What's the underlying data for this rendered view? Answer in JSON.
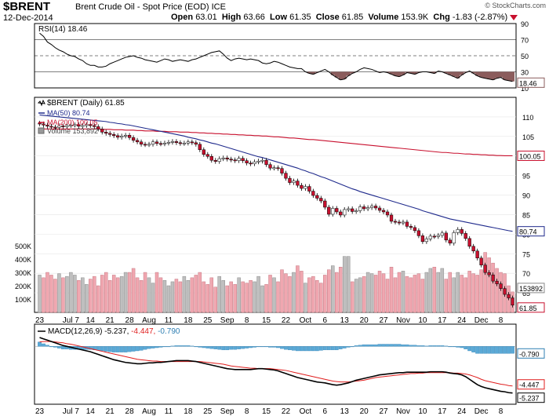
{
  "header": {
    "symbol": "$BRENT",
    "name": "Brent Crude Oil - Spot Price (EOD)",
    "exchange": "ICE",
    "date": "12-Dec-2014",
    "open_label": "Open",
    "open": "63.01",
    "high_label": "High",
    "high": "63.66",
    "low_label": "Low",
    "low": "61.35",
    "close_label": "Close",
    "close": "61.85",
    "volume_label": "Volume",
    "volume": "153.9K",
    "chg_label": "Chg",
    "chg": "-1.83 (-2.87%)",
    "watermark": "© StockCharts.com"
  },
  "colors": {
    "up": "#ffffff",
    "down": "#c8102e",
    "ma50": "#1f2a8c",
    "ma200": "#c8102e",
    "vol_up": "#bfbfbf",
    "vol_down": "#f0a7b0",
    "macd": "#000000",
    "signal": "#e01e1e",
    "hist": "#5aa9d6",
    "rsi_fill": "#8b5c5c"
  },
  "chart_data": [
    {
      "type": "line",
      "panel": "rsi",
      "legend": "RSI(14) 18.46",
      "last_value": "18.46",
      "ylim": [
        10,
        90
      ],
      "y_ticks": [
        90,
        70,
        50,
        30,
        10
      ],
      "y_tick_labels": [
        "90",
        "70",
        "50",
        "30",
        "10"
      ],
      "series": [
        {
          "name": "RSI(14)",
          "values": [
            78,
            74,
            67,
            64,
            60,
            57,
            55,
            52,
            50,
            49,
            46,
            44,
            40,
            38,
            38,
            36,
            36,
            37,
            40,
            42,
            44,
            46,
            48,
            49,
            50,
            48,
            47,
            45,
            44,
            43,
            42,
            44,
            46,
            45,
            43,
            44,
            45,
            44,
            43,
            45,
            46,
            48,
            50,
            52,
            54,
            55,
            56,
            52,
            47,
            44,
            46,
            47,
            46,
            45,
            46,
            45,
            44,
            41,
            40,
            41,
            43,
            42,
            40,
            38,
            36,
            35,
            34,
            34,
            30,
            28,
            27,
            29,
            31,
            33,
            30,
            26,
            23,
            20,
            21,
            25,
            28,
            30,
            33,
            35,
            34,
            33,
            31,
            29,
            30,
            29,
            27,
            25,
            24,
            26,
            29,
            28,
            27,
            29,
            30,
            30,
            29,
            28,
            31,
            30,
            28,
            26,
            24,
            22,
            26,
            29,
            31,
            28,
            25,
            23,
            22,
            21,
            20,
            22,
            23,
            20,
            19,
            18
          ]
        }
      ]
    },
    {
      "type": "candlestick",
      "panel": "price",
      "legend_title": "$BRENT (Daily) 61.85",
      "ylim": [
        60,
        115
      ],
      "y_ticks": [
        110,
        105,
        100,
        95,
        90,
        85,
        80,
        75,
        70,
        65
      ],
      "y_tick_labels": [
        "110",
        "105",
        "100",
        "95",
        "90",
        "85",
        "80",
        "75",
        "70",
        "65"
      ],
      "last_labels": {
        "ma200": "100.05",
        "ma50": "80.74",
        "close": "61.85",
        "volume": "153892"
      },
      "closes": [
        108.2,
        107.9,
        107.6,
        107.4,
        107.3,
        107.7,
        107.5,
        107.8,
        107.9,
        108.0,
        107.6,
        107.8,
        108.0,
        107.8,
        107.5,
        106.9,
        106.1,
        105.8,
        105.5,
        105.2,
        104.8,
        105.1,
        105.3,
        104.7,
        104.0,
        103.6,
        103.0,
        102.9,
        103.0,
        103.6,
        103.2,
        103.1,
        103.3,
        103.5,
        103.7,
        103.4,
        103.2,
        103.3,
        103.6,
        103.4,
        103.0,
        101.6,
        100.4,
        99.9,
        98.9,
        98.6,
        99.3,
        99.5,
        99.2,
        99.0,
        98.8,
        99.4,
        98.8,
        98.2,
        98.0,
        98.5,
        98.7,
        98.9,
        97.8,
        96.9,
        97.0,
        96.8,
        95.6,
        94.3,
        93.2,
        93.6,
        92.5,
        91.7,
        92.2,
        91.0,
        89.9,
        89.2,
        88.5,
        86.9,
        85.1,
        86.6,
        85.7,
        84.9,
        86.3,
        86.5,
        85.8,
        86.0,
        87.0,
        86.5,
        86.8,
        87.2,
        86.7,
        86.1,
        85.7,
        84.9,
        83.3,
        83.1,
        82.9,
        83.1,
        82.0,
        81.7,
        80.9,
        79.6,
        78.1,
        78.8,
        79.5,
        79.4,
        79.7,
        80.3,
        78.5,
        77.7,
        80.4,
        81.2,
        80.2,
        78.9,
        76.9,
        75.7,
        73.9,
        72.1,
        70.2,
        69.6,
        68.0,
        67.3,
        66.1,
        64.6,
        63.7,
        61.85
      ],
      "ma50": [
        110.5,
        110.4,
        110.3,
        110.2,
        110.1,
        110.0,
        109.9,
        109.8,
        109.7,
        109.6,
        109.5,
        109.4,
        109.3,
        109.2,
        109.1,
        109.0,
        108.9,
        108.8,
        108.6,
        108.5,
        108.3,
        108.2,
        108.0,
        107.9,
        107.7,
        107.5,
        107.3,
        107.1,
        106.9,
        106.7,
        106.5,
        106.3,
        106.1,
        105.9,
        105.7,
        105.5,
        105.3,
        105.1,
        104.8,
        104.6,
        104.4,
        104.1,
        103.9,
        103.6,
        103.3,
        103.1,
        102.8,
        102.5,
        102.2,
        101.9,
        101.6,
        101.3,
        101.0,
        100.7,
        100.4,
        100.1,
        99.8,
        99.6,
        99.3,
        99.0,
        98.7,
        98.4,
        98.1,
        97.8,
        97.5,
        97.2,
        96.9,
        96.5,
        96.2,
        95.8,
        95.5,
        95.1,
        94.7,
        94.4,
        94.0,
        93.6,
        93.2,
        92.8,
        92.4,
        92.0,
        91.6,
        91.3,
        90.9,
        90.6,
        90.3,
        90.0,
        89.7,
        89.4,
        89.1,
        88.8,
        88.5,
        88.2,
        87.9,
        87.6,
        87.3,
        87.0,
        86.7,
        86.4,
        86.0,
        85.7,
        85.4,
        85.1,
        84.8,
        84.5,
        84.2,
        83.9,
        83.7,
        83.5,
        83.3,
        83.1,
        82.9,
        82.7,
        82.5,
        82.3,
        82.1,
        81.9,
        81.7,
        81.5,
        81.3,
        81.1,
        80.9,
        80.74
      ],
      "ma200": [
        106.9,
        106.9,
        106.9,
        106.9,
        106.9,
        106.9,
        106.9,
        106.9,
        106.9,
        106.9,
        106.9,
        106.9,
        106.9,
        106.9,
        106.9,
        106.9,
        106.8,
        106.8,
        106.8,
        106.7,
        106.7,
        106.7,
        106.6,
        106.6,
        106.6,
        106.5,
        106.5,
        106.4,
        106.4,
        106.4,
        106.3,
        106.3,
        106.3,
        106.2,
        106.2,
        106.2,
        106.1,
        106.1,
        106.1,
        106.0,
        106.0,
        105.9,
        105.9,
        105.8,
        105.8,
        105.7,
        105.7,
        105.6,
        105.6,
        105.5,
        105.5,
        105.4,
        105.4,
        105.3,
        105.3,
        105.2,
        105.2,
        105.1,
        105.1,
        105.0,
        104.9,
        104.9,
        104.8,
        104.7,
        104.6,
        104.6,
        104.5,
        104.4,
        104.3,
        104.2,
        104.2,
        104.1,
        104.0,
        103.9,
        103.8,
        103.7,
        103.6,
        103.5,
        103.4,
        103.3,
        103.2,
        103.1,
        103.0,
        102.9,
        102.8,
        102.7,
        102.6,
        102.5,
        102.4,
        102.3,
        102.2,
        102.1,
        102.0,
        101.9,
        101.8,
        101.7,
        101.6,
        101.5,
        101.4,
        101.3,
        101.2,
        101.1,
        101.0,
        100.9,
        100.9,
        100.8,
        100.7,
        100.7,
        100.6,
        100.5,
        100.5,
        100.4,
        100.4,
        100.3,
        100.3,
        100.2,
        100.2,
        100.1,
        100.1,
        100.05,
        100.05,
        100.05
      ],
      "series": [
        {
          "name": "MA(50) 80.74"
        },
        {
          "name": "MA(200) 100.05"
        },
        {
          "name": "Volume 153,892"
        }
      ],
      "x_tick_labels": [
        "23",
        "Jul 7",
        "14",
        "21",
        "28",
        "Aug",
        "11",
        "18",
        "25",
        "Sep",
        "8",
        "15",
        "22",
        "Oct",
        "6",
        "13",
        "20",
        "27",
        "Nov",
        "10",
        "17",
        "24",
        "Dec",
        "8"
      ]
    },
    {
      "type": "bar",
      "panel": "volume",
      "ylim": [
        0,
        530000
      ],
      "y_ticks": [
        500000,
        400000,
        300000,
        200000,
        100000
      ],
      "y_tick_labels": [
        "500K",
        "400K",
        "300K",
        "200K",
        "100K"
      ],
      "values": [
        280000,
        260000,
        300000,
        280000,
        250000,
        290000,
        260000,
        270000,
        300000,
        280000,
        240000,
        260000,
        210000,
        250000,
        270000,
        200000,
        280000,
        300000,
        240000,
        280000,
        260000,
        270000,
        300000,
        300000,
        330000,
        260000,
        240000,
        300000,
        260000,
        220000,
        300000,
        260000,
        240000,
        200000,
        230000,
        250000,
        230000,
        270000,
        240000,
        260000,
        280000,
        300000,
        230000,
        210000,
        260000,
        190000,
        270000,
        240000,
        200000,
        230000,
        210000,
        260000,
        230000,
        220000,
        240000,
        230000,
        270000,
        200000,
        210000,
        280000,
        260000,
        230000,
        320000,
        290000,
        270000,
        300000,
        350000,
        310000,
        220000,
        260000,
        270000,
        240000,
        220000,
        280000,
        320000,
        350000,
        300000,
        340000,
        420000,
        420000,
        230000,
        250000,
        260000,
        270000,
        300000,
        290000,
        280000,
        310000,
        290000,
        250000,
        340000,
        260000,
        300000,
        310000,
        270000,
        260000,
        280000,
        290000,
        250000,
        300000,
        330000,
        340000,
        300000,
        330000,
        250000,
        300000,
        260000,
        300000,
        280000,
        260000,
        310000,
        290000,
        280000,
        320000,
        450000,
        410000,
        370000,
        330000,
        300000,
        290000,
        200000,
        153892
      ]
    },
    {
      "type": "line",
      "panel": "macd",
      "legend": "MACD(12,26,9) -5.237, -4.447, -0.790",
      "last_labels": {
        "hist": "-0.790",
        "signal": "-4.447",
        "macd": "-5.237"
      },
      "ylim": [
        -6.5,
        2.5
      ],
      "series": [
        {
          "name": "MACD(12,26,9) -5.237",
          "values": [
            1.0,
            0.85,
            0.7,
            0.55,
            0.4,
            0.25,
            0.1,
            0.0,
            -0.1,
            -0.2,
            -0.3,
            -0.4,
            -0.5,
            -0.6,
            -0.75,
            -0.9,
            -1.05,
            -1.2,
            -1.35,
            -1.5,
            -1.6,
            -1.7,
            -1.8,
            -1.85,
            -1.9,
            -1.95,
            -1.95,
            -1.9,
            -1.85,
            -1.85,
            -1.8,
            -1.8,
            -1.75,
            -1.7,
            -1.65,
            -1.6,
            -1.6,
            -1.6,
            -1.6,
            -1.65,
            -1.7,
            -1.8,
            -1.9,
            -2.0,
            -2.1,
            -2.2,
            -2.3,
            -2.4,
            -2.5,
            -2.55,
            -2.6,
            -2.6,
            -2.6,
            -2.6,
            -2.6,
            -2.55,
            -2.5,
            -2.5,
            -2.55,
            -2.6,
            -2.65,
            -2.75,
            -2.9,
            -3.05,
            -3.2,
            -3.35,
            -3.5,
            -3.6,
            -3.7,
            -3.8,
            -3.9,
            -4.0,
            -4.05,
            -4.1,
            -4.2,
            -4.3,
            -4.35,
            -4.3,
            -4.2,
            -4.1,
            -3.95,
            -3.8,
            -3.7,
            -3.6,
            -3.5,
            -3.4,
            -3.3,
            -3.2,
            -3.15,
            -3.1,
            -3.05,
            -3.0,
            -2.95,
            -2.95,
            -2.9,
            -2.9,
            -2.9,
            -2.9,
            -2.9,
            -2.9,
            -2.85,
            -2.85,
            -2.85,
            -2.85,
            -2.9,
            -3.0,
            -3.05,
            -3.1,
            -3.2,
            -3.4,
            -3.7,
            -4.0,
            -4.3,
            -4.5,
            -4.65,
            -4.75,
            -4.85,
            -4.95,
            -5.05,
            -5.1,
            -5.2,
            -5.237
          ]
        },
        {
          "name": "-4.447",
          "values": [
            0.5,
            0.55,
            0.55,
            0.55,
            0.5,
            0.45,
            0.4,
            0.3,
            0.25,
            0.15,
            0.05,
            -0.05,
            -0.15,
            -0.25,
            -0.35,
            -0.45,
            -0.55,
            -0.65,
            -0.75,
            -0.85,
            -0.95,
            -1.05,
            -1.15,
            -1.25,
            -1.35,
            -1.45,
            -1.5,
            -1.55,
            -1.6,
            -1.65,
            -1.65,
            -1.7,
            -1.7,
            -1.7,
            -1.7,
            -1.7,
            -1.7,
            -1.7,
            -1.7,
            -1.7,
            -1.7,
            -1.7,
            -1.75,
            -1.8,
            -1.85,
            -1.9,
            -1.95,
            -2.0,
            -2.1,
            -2.2,
            -2.25,
            -2.3,
            -2.35,
            -2.4,
            -2.45,
            -2.45,
            -2.5,
            -2.5,
            -2.5,
            -2.5,
            -2.55,
            -2.6,
            -2.65,
            -2.7,
            -2.8,
            -2.9,
            -3.0,
            -3.1,
            -3.2,
            -3.3,
            -3.4,
            -3.5,
            -3.6,
            -3.7,
            -3.8,
            -3.9,
            -3.95,
            -4.0,
            -4.0,
            -4.0,
            -3.95,
            -3.9,
            -3.85,
            -3.8,
            -3.7,
            -3.6,
            -3.5,
            -3.45,
            -3.4,
            -3.35,
            -3.3,
            -3.25,
            -3.2,
            -3.15,
            -3.1,
            -3.05,
            -3.05,
            -3.0,
            -3.0,
            -2.95,
            -2.95,
            -2.95,
            -2.95,
            -2.95,
            -2.95,
            -2.95,
            -3.0,
            -3.0,
            -3.05,
            -3.1,
            -3.2,
            -3.35,
            -3.5,
            -3.7,
            -3.85,
            -3.95,
            -4.05,
            -4.15,
            -4.25,
            -4.3,
            -4.4,
            -4.447
          ]
        },
        {
          "name": "histogram -0.790",
          "values": [
            0.5,
            0.3,
            0.15,
            0.0,
            -0.1,
            -0.2,
            -0.3,
            -0.3,
            -0.35,
            -0.35,
            -0.35,
            -0.35,
            -0.35,
            -0.35,
            -0.4,
            -0.45,
            -0.5,
            -0.55,
            -0.6,
            -0.65,
            -0.65,
            -0.65,
            -0.65,
            -0.6,
            -0.55,
            -0.5,
            -0.45,
            -0.35,
            -0.25,
            -0.2,
            -0.15,
            -0.1,
            -0.05,
            0.0,
            0.05,
            0.1,
            0.1,
            0.1,
            0.1,
            0.05,
            0.0,
            -0.1,
            -0.15,
            -0.2,
            -0.25,
            -0.3,
            -0.35,
            -0.4,
            -0.4,
            -0.35,
            -0.35,
            -0.3,
            -0.25,
            -0.2,
            -0.15,
            -0.1,
            0.0,
            0.0,
            -0.05,
            -0.1,
            -0.1,
            -0.15,
            -0.25,
            -0.35,
            -0.4,
            -0.45,
            -0.5,
            -0.5,
            -0.5,
            -0.5,
            -0.5,
            -0.5,
            -0.45,
            -0.4,
            -0.4,
            -0.4,
            -0.4,
            -0.3,
            -0.2,
            -0.1,
            0.0,
            0.1,
            0.15,
            0.2,
            0.2,
            0.2,
            0.2,
            0.25,
            0.25,
            0.25,
            0.25,
            0.25,
            0.25,
            0.2,
            0.2,
            0.15,
            0.15,
            0.1,
            0.1,
            0.05,
            0.1,
            0.1,
            0.1,
            0.1,
            0.05,
            -0.05,
            -0.05,
            -0.1,
            -0.15,
            -0.3,
            -0.5,
            -0.65,
            -0.8,
            -0.8,
            -0.8,
            -0.8,
            -0.8,
            -0.8,
            -0.8,
            -0.8,
            -0.8,
            -0.79
          ]
        }
      ],
      "x_tick_labels": [
        "23",
        "Jul 7",
        "14",
        "21",
        "28",
        "Aug",
        "11",
        "18",
        "25",
        "Sep",
        "8",
        "15",
        "22",
        "Oct",
        "6",
        "13",
        "20",
        "27",
        "Nov",
        "10",
        "17",
        "24",
        "Dec",
        "8"
      ]
    }
  ]
}
